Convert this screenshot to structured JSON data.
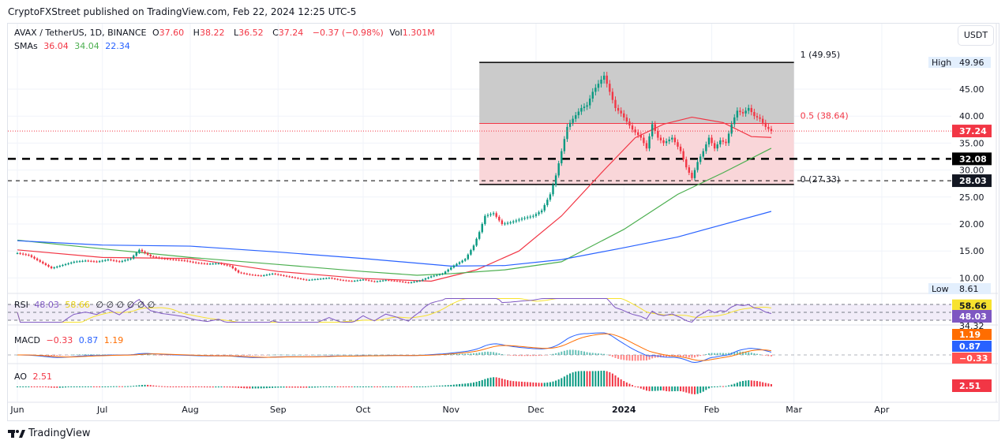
{
  "header": {
    "published": "CryptoFXStreet published on TradingView.com, Feb 22, 2024 12:25 UTC-5"
  },
  "legend": {
    "symbol": "AVAX / TetherUS, 1D, BINANCE",
    "o_label": "O",
    "o": "37.60",
    "h_label": "H",
    "h": "38.22",
    "l_label": "L",
    "l": "36.52",
    "c_label": "C",
    "c": "37.24",
    "change": "−0.37 (−0.98%)",
    "vol_label": "Vol",
    "vol": "1.301M",
    "sma_label": "SMAs",
    "sma1": "36.04",
    "sma2": "34.04",
    "sma3": "22.34"
  },
  "currency_button": "USDT",
  "footer": {
    "brand": "TradingView"
  },
  "colors": {
    "up": "#089981",
    "down": "#f23645",
    "sma50": "#f23645",
    "sma100": "#4caf50",
    "sma200": "#2962ff",
    "rsi": "#7e57c2",
    "rsi_ma": "#f7e22e",
    "macd": "#2962ff",
    "signal": "#ff6d00"
  },
  "chart_data": {
    "type": "candlestick",
    "price_axis": {
      "ticks": [
        "45.00",
        "40.00",
        "35.00",
        "30.00",
        "25.00",
        "20.00",
        "15.00",
        "10.00"
      ],
      "range": [
        8,
        52
      ],
      "scale": "linear"
    },
    "x_axis": {
      "ticks": [
        {
          "label": "Jun",
          "date": "2023-06-01"
        },
        {
          "label": "Jul",
          "date": "2023-07-01"
        },
        {
          "label": "Aug",
          "date": "2023-08-01"
        },
        {
          "label": "Sep",
          "date": "2023-09-01"
        },
        {
          "label": "Oct",
          "date": "2023-10-01"
        },
        {
          "label": "Nov",
          "date": "2023-11-01"
        },
        {
          "label": "Dec",
          "date": "2023-12-01"
        },
        {
          "label": "2024",
          "date": "2024-01-01"
        },
        {
          "label": "Feb",
          "date": "2024-02-01"
        },
        {
          "label": "Mar",
          "date": "2024-03-01"
        },
        {
          "label": "Apr",
          "date": "2024-04-01"
        }
      ]
    },
    "closes": [
      [
        "2023-06-01",
        14.6
      ],
      [
        "2023-06-05",
        14.2
      ],
      [
        "2023-06-09",
        13.0
      ],
      [
        "2023-06-13",
        11.8
      ],
      [
        "2023-06-17",
        12.4
      ],
      [
        "2023-06-21",
        13.0
      ],
      [
        "2023-06-25",
        13.2
      ],
      [
        "2023-06-29",
        13.0
      ],
      [
        "2023-07-03",
        13.4
      ],
      [
        "2023-07-07",
        13.0
      ],
      [
        "2023-07-11",
        13.6
      ],
      [
        "2023-07-14",
        15.2
      ],
      [
        "2023-07-18",
        14.0
      ],
      [
        "2023-07-22",
        13.6
      ],
      [
        "2023-07-26",
        13.4
      ],
      [
        "2023-07-30",
        13.2
      ],
      [
        "2023-08-03",
        12.8
      ],
      [
        "2023-08-07",
        12.6
      ],
      [
        "2023-08-11",
        12.7
      ],
      [
        "2023-08-15",
        12.2
      ],
      [
        "2023-08-18",
        11.0
      ],
      [
        "2023-08-22",
        10.6
      ],
      [
        "2023-08-26",
        10.4
      ],
      [
        "2023-08-30",
        10.8
      ],
      [
        "2023-09-03",
        10.4
      ],
      [
        "2023-09-07",
        10.0
      ],
      [
        "2023-09-11",
        9.6
      ],
      [
        "2023-09-15",
        9.8
      ],
      [
        "2023-09-19",
        10.0
      ],
      [
        "2023-09-23",
        9.6
      ],
      [
        "2023-09-27",
        9.4
      ],
      [
        "2023-10-01",
        9.7
      ],
      [
        "2023-10-05",
        9.3
      ],
      [
        "2023-10-09",
        9.6
      ],
      [
        "2023-10-13",
        9.4
      ],
      [
        "2023-10-17",
        9.1
      ],
      [
        "2023-10-21",
        9.5
      ],
      [
        "2023-10-25",
        10.3
      ],
      [
        "2023-10-29",
        10.8
      ],
      [
        "2023-11-02",
        12.3
      ],
      [
        "2023-11-06",
        13.5
      ],
      [
        "2023-11-09",
        16.0
      ],
      [
        "2023-11-11",
        18.5
      ],
      [
        "2023-11-13",
        21.5
      ],
      [
        "2023-11-16",
        22.0
      ],
      [
        "2023-11-19",
        20.0
      ],
      [
        "2023-11-22",
        20.3
      ],
      [
        "2023-11-26",
        21.0
      ],
      [
        "2023-11-30",
        21.5
      ],
      [
        "2023-12-03",
        22.5
      ],
      [
        "2023-12-06",
        25.5
      ],
      [
        "2023-12-08",
        29.0
      ],
      [
        "2023-12-10",
        33.5
      ],
      [
        "2023-12-12",
        38.0
      ],
      [
        "2023-12-14",
        39.5
      ],
      [
        "2023-12-17",
        41.5
      ],
      [
        "2023-12-19",
        42.0
      ],
      [
        "2023-12-21",
        44.5
      ],
      [
        "2023-12-23",
        46.0
      ],
      [
        "2023-12-25",
        47.5
      ],
      [
        "2023-12-27",
        44.5
      ],
      [
        "2023-12-29",
        41.5
      ],
      [
        "2023-12-31",
        40.5
      ],
      [
        "2024-01-02",
        39.0
      ],
      [
        "2024-01-04",
        37.5
      ],
      [
        "2024-01-07",
        36.0
      ],
      [
        "2024-01-09",
        34.0
      ],
      [
        "2024-01-11",
        38.5
      ],
      [
        "2024-01-13",
        36.0
      ],
      [
        "2024-01-15",
        35.0
      ],
      [
        "2024-01-18",
        36.0
      ],
      [
        "2024-01-21",
        33.5
      ],
      [
        "2024-01-23",
        30.5
      ],
      [
        "2024-01-25",
        28.5
      ],
      [
        "2024-01-27",
        31.5
      ],
      [
        "2024-01-29",
        33.5
      ],
      [
        "2024-01-31",
        36.0
      ],
      [
        "2024-02-02",
        34.0
      ],
      [
        "2024-02-04",
        35.5
      ],
      [
        "2024-02-06",
        35.0
      ],
      [
        "2024-02-08",
        38.5
      ],
      [
        "2024-02-10",
        41.0
      ],
      [
        "2024-02-12",
        40.5
      ],
      [
        "2024-02-14",
        41.5
      ],
      [
        "2024-02-16",
        40.0
      ],
      [
        "2024-02-18",
        39.5
      ],
      [
        "2024-02-20",
        38.0
      ],
      [
        "2024-02-22",
        37.24
      ]
    ],
    "series": [
      {
        "name": "SMA 50",
        "color": "#f23645",
        "points": [
          [
            "2023-06-01",
            15.2
          ],
          [
            "2023-07-01",
            13.8
          ],
          [
            "2023-08-01",
            13.6
          ],
          [
            "2023-09-01",
            11.2
          ],
          [
            "2023-10-01",
            9.9
          ],
          [
            "2023-10-25",
            9.4
          ],
          [
            "2023-11-10",
            11.5
          ],
          [
            "2023-11-25",
            15.0
          ],
          [
            "2023-12-10",
            21.5
          ],
          [
            "2023-12-25",
            30.0
          ],
          [
            "2024-01-05",
            36.0
          ],
          [
            "2024-01-15",
            38.5
          ],
          [
            "2024-01-25",
            39.8
          ],
          [
            "2024-02-05",
            38.8
          ],
          [
            "2024-02-15",
            36.2
          ],
          [
            "2024-02-22",
            36.04
          ]
        ]
      },
      {
        "name": "SMA 100",
        "color": "#4caf50",
        "points": [
          [
            "2023-06-01",
            17.0
          ],
          [
            "2023-07-01",
            15.4
          ],
          [
            "2023-08-01",
            13.8
          ],
          [
            "2023-09-01",
            12.5
          ],
          [
            "2023-10-01",
            11.2
          ],
          [
            "2023-10-20",
            10.5
          ],
          [
            "2023-11-01",
            10.8
          ],
          [
            "2023-11-20",
            11.5
          ],
          [
            "2023-12-10",
            13.0
          ],
          [
            "2024-01-01",
            19.0
          ],
          [
            "2024-01-20",
            25.5
          ],
          [
            "2024-02-05",
            29.5
          ],
          [
            "2024-02-22",
            34.04
          ]
        ]
      },
      {
        "name": "SMA 200",
        "color": "#2962ff",
        "points": [
          [
            "2023-06-01",
            16.9
          ],
          [
            "2023-07-01",
            16.1
          ],
          [
            "2023-08-01",
            15.9
          ],
          [
            "2023-09-01",
            14.8
          ],
          [
            "2023-10-01",
            13.6
          ],
          [
            "2023-11-01",
            12.2
          ],
          [
            "2023-11-20",
            12.3
          ],
          [
            "2023-12-10",
            13.4
          ],
          [
            "2024-01-01",
            15.6
          ],
          [
            "2024-01-20",
            17.6
          ],
          [
            "2024-02-05",
            19.9
          ],
          [
            "2024-02-22",
            22.34
          ]
        ]
      }
    ],
    "fib": {
      "start": "2023-11-11",
      "end": "2024-03-01",
      "levels": [
        {
          "ratio": "1",
          "value": 49.95,
          "label": "1 (49.95)"
        },
        {
          "ratio": "0.5",
          "value": 38.64,
          "label": "0.5 (38.64)"
        },
        {
          "ratio": "0",
          "value": 27.33,
          "label": "0 (27.33)"
        }
      ]
    },
    "horizontal_lines": [
      {
        "value": 32.08,
        "label": "32.08"
      },
      {
        "value": 28.03,
        "label": "28.03"
      }
    ],
    "last_price": {
      "value": 37.24,
      "label": "37.24"
    },
    "high": {
      "label": "High",
      "value": "49.96"
    },
    "low": {
      "label": "Low",
      "value": "8.61"
    },
    "rsi": {
      "title": "RSI",
      "value": "48.03",
      "ma": "58.66",
      "placeholders": "∅ ∅ ∅ ∅ ∅ ∅",
      "band_label": "34.32"
    },
    "macd": {
      "title": "MACD",
      "hist": "−0.33",
      "macd": "0.87",
      "signal": "1.19"
    },
    "ao": {
      "title": "AO",
      "value": "2.51"
    }
  }
}
